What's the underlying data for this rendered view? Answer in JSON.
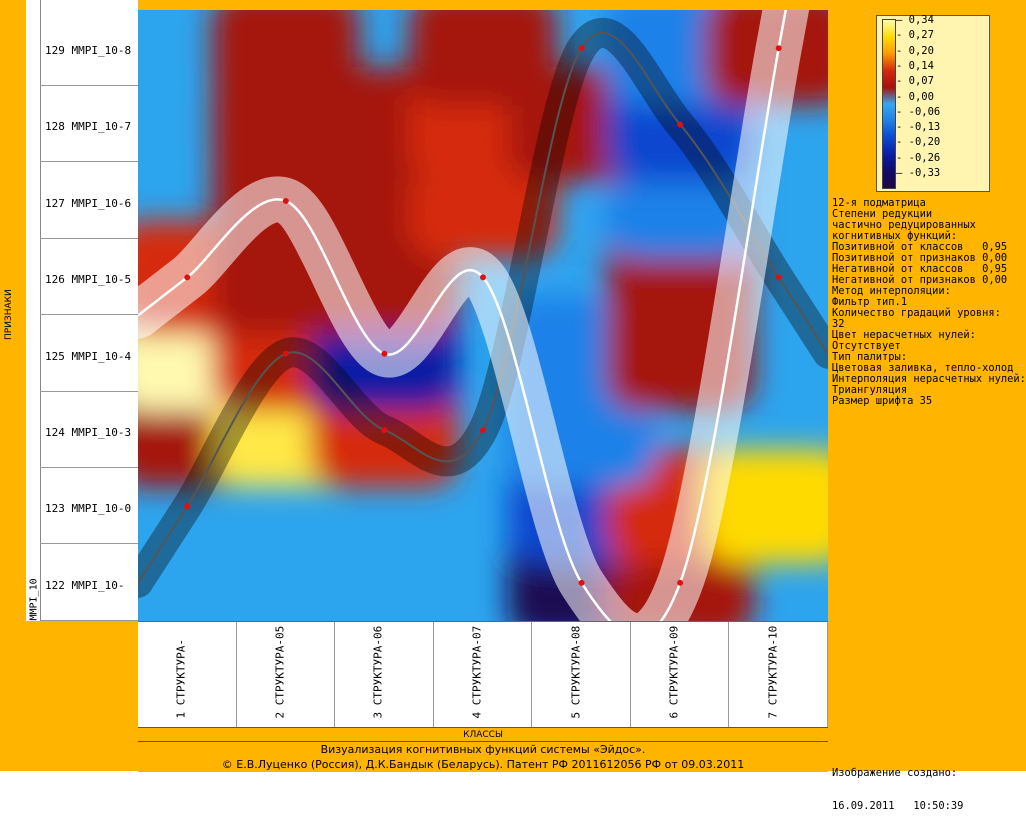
{
  "rows": [
    {
      "label": "129 MMPI_10-8"
    },
    {
      "label": "128 MMPI_10-7"
    },
    {
      "label": "127 MMPI_10-6"
    },
    {
      "label": "126 MMPI_10-5"
    },
    {
      "label": "125 MMPI_10-4"
    },
    {
      "label": "124 MMPI_10-3"
    },
    {
      "label": "123 MMPI_10-0"
    },
    {
      "label": "122 MMPI_10-"
    }
  ],
  "row_group": "MMPI_10",
  "axis_y_label": "ПРИЗНАКИ",
  "columns": [
    {
      "label": "1 СТРУКТУРА-"
    },
    {
      "label": "2 СТРУКТУРА-05"
    },
    {
      "label": "3 СТРУКТУРА-06"
    },
    {
      "label": "4 СТРУКТУРА-07"
    },
    {
      "label": "5 СТРУКТУРА-08"
    },
    {
      "label": "6 СТРУКТУРА-09"
    },
    {
      "label": "7 СТРУКТУРА-10"
    }
  ],
  "axis_x_label": "КЛАССЫ",
  "footer": {
    "line1": "Визуализация когнитивных функций системы «Эйдос».",
    "line2": "© Е.В.Луценко (Россия), Д.К.Бандык (Беларусь). Патент РФ  2011612056 РФ от 09.03.2011"
  },
  "legend": {
    "ticks": [
      "0,34",
      "0,27",
      "0,20",
      "0,14",
      "0,07",
      "0,00",
      "-0,06",
      "-0,13",
      "-0,20",
      "-0,26",
      "-0,33"
    ],
    "colors": [
      "#fff9b0",
      "#ffdd00",
      "#ff9a00",
      "#d42a10",
      "#a81008",
      "#35a8f0",
      "#1d80e8",
      "#0a48d0",
      "#0a1ea8",
      "#100a6a",
      "#220840"
    ]
  },
  "info_lines": [
    "12-я подматрица",
    "Степени редукции",
    "частично редуцированных",
    "когнитивных функций:",
    "Позитивной от классов   0,95",
    "Позитивной от признаков 0,00",
    "Негативной от классов   0,95",
    "Негативной от признаков 0,00",
    "Метод интерполяции:",
    "Фильтр тип.1",
    "Количество градаций уровня:",
    "32",
    "Цвет нерасчетных нулей:",
    "Отсутствует",
    "Тип палитры:",
    "Цветовая заливка, тепло-холод",
    "Интерполяция нерасчетных нулей:",
    "Триангуляция",
    "Размер шрифта 35"
  ],
  "created": {
    "line1": "Изображение создано:",
    "line2": "16.09.2011   10:50:39"
  },
  "chart_data": {
    "type": "heatmap",
    "x_categories": [
      "1 СТРУКТУРА-",
      "2 СТРУКТУРА-05",
      "3 СТРУКТУРА-06",
      "4 СТРУКТУРА-07",
      "5 СТРУКТУРА-08",
      "6 СТРУКТУРА-09",
      "7 СТРУКТУРА-10"
    ],
    "y_categories": [
      "122 MMPI_10-",
      "123 MMPI_10-0",
      "124 MMPI_10-3",
      "125 MMPI_10-4",
      "126 MMPI_10-5",
      "127 MMPI_10-6",
      "128 MMPI_10-7",
      "129 MMPI_10-8"
    ],
    "xlabel": "КЛАССЫ",
    "ylabel": "ПРИЗНАКИ",
    "zlim": [
      -0.33,
      0.34
    ],
    "values": [
      [
        0.0,
        0.0,
        0.0,
        0.0,
        -0.3,
        0.07,
        0.0
      ],
      [
        0.0,
        0.0,
        0.0,
        0.0,
        -0.13,
        0.14,
        0.27
      ],
      [
        0.07,
        0.3,
        0.14,
        0.0,
        -0.06,
        0.0,
        0.0
      ],
      [
        0.34,
        0.14,
        -0.2,
        0.0,
        -0.06,
        0.07,
        0.0
      ],
      [
        0.14,
        0.07,
        0.07,
        0.0,
        0.0,
        0.07,
        0.0
      ],
      [
        0.0,
        0.07,
        0.07,
        0.14,
        0.0,
        -0.06,
        0.0
      ],
      [
        0.0,
        0.07,
        0.07,
        0.14,
        0.07,
        -0.13,
        0.0
      ],
      [
        0.0,
        0.07,
        0.0,
        0.07,
        0.0,
        -0.06,
        0.07
      ]
    ],
    "series": [
      {
        "points_row_index": [
          1,
          3,
          2,
          2,
          7,
          6,
          4
        ]
      },
      {
        "points_row_index": [
          4,
          5,
          3,
          4,
          0,
          0,
          7
        ]
      }
    ]
  }
}
